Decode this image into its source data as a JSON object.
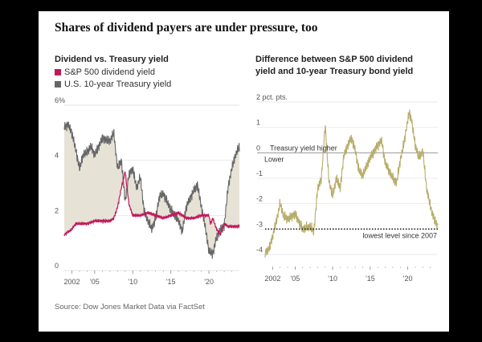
{
  "title": "Shares of dividend payers are under pressure, too",
  "source": "Source: Dow Jones Market Data via FactSet",
  "colors": {
    "dividend": "#c2185b",
    "treasury": "#666666",
    "fill": "#e6e3d6",
    "spread": "#b7ad6a"
  },
  "chart_data": [
    {
      "type": "line",
      "title": "Dividend vs. Treasury yield",
      "legend": [
        "S&P 500 dividend yield",
        "U.S. 10-year Treasury yield"
      ],
      "ylim": [
        0,
        6
      ],
      "yticks": [
        "0",
        "2",
        "4",
        "6%"
      ],
      "ytick_values": [
        0,
        2,
        4,
        6
      ],
      "xlim": [
        2001,
        2024
      ],
      "xticks": [
        "2002",
        "'05",
        "'10",
        "'15",
        "'20"
      ],
      "xtick_values": [
        2002,
        2005,
        2010,
        2015,
        2020
      ],
      "series": [
        {
          "name": "S&P 500 dividend yield",
          "x": [
            2001,
            2002,
            2002.5,
            2003,
            2004,
            2005,
            2006,
            2007,
            2007.5,
            2008,
            2008.5,
            2009,
            2009.2,
            2009.5,
            2010,
            2011,
            2012,
            2013,
            2014,
            2015,
            2016,
            2017,
            2018,
            2019,
            2020,
            2020.2,
            2020.5,
            2021,
            2021.5,
            2022,
            2022.5,
            2023,
            2024
          ],
          "y": [
            1.3,
            1.5,
            1.7,
            1.7,
            1.7,
            1.8,
            1.8,
            1.8,
            1.9,
            2.3,
            3.0,
            3.6,
            3.1,
            2.4,
            2.0,
            2.0,
            2.1,
            2.0,
            1.9,
            2.0,
            2.1,
            1.9,
            1.9,
            2.0,
            2.0,
            1.7,
            1.9,
            1.5,
            1.3,
            1.7,
            1.6,
            1.6,
            1.6
          ]
        },
        {
          "name": "U.S. 10-year Treasury yield",
          "x": [
            2001,
            2001.5,
            2002,
            2002.5,
            2003,
            2003.5,
            2004,
            2004.5,
            2005,
            2006,
            2007,
            2007.5,
            2008,
            2008.5,
            2009,
            2009.5,
            2010,
            2010.5,
            2011,
            2011.5,
            2012,
            2012.5,
            2013,
            2013.5,
            2014,
            2015,
            2016,
            2016.5,
            2017,
            2018,
            2018.5,
            2019,
            2019.5,
            2020,
            2020.5,
            2021,
            2021.5,
            2022,
            2022.5,
            2023,
            2023.5,
            2024
          ],
          "y": [
            5.2,
            5.3,
            5.0,
            4.4,
            3.7,
            4.2,
            4.3,
            4.5,
            4.2,
            4.8,
            4.7,
            5.0,
            3.7,
            4.0,
            2.5,
            3.5,
            3.7,
            3.0,
            3.4,
            2.1,
            1.8,
            1.5,
            1.9,
            2.7,
            2.8,
            2.2,
            1.8,
            1.4,
            2.3,
            2.9,
            3.1,
            2.3,
            1.6,
            0.7,
            0.6,
            1.2,
            1.5,
            1.6,
            3.0,
            3.7,
            4.2,
            4.5
          ]
        }
      ]
    },
    {
      "type": "line",
      "title": "Difference between S&P 500 dividend yield and 10-year Treasury bond yield",
      "ylim": [
        -4,
        2
      ],
      "yticks": [
        "2 pct. pts.",
        "1",
        "0",
        "-1",
        "-2",
        "-3",
        "-4"
      ],
      "ytick_values": [
        2,
        1,
        0,
        -1,
        -2,
        -3,
        -4
      ],
      "xlim": [
        2001,
        2024
      ],
      "xticks": [
        "2002",
        "'05",
        "'10",
        "'15",
        "'20"
      ],
      "xtick_values": [
        2002,
        2005,
        2010,
        2015,
        2020
      ],
      "annotations": {
        "zero_upper": "Treasury yield higher",
        "zero_lower": "Lower",
        "dotted": "lowest level since 2007"
      },
      "reference_lines": [
        0,
        -3.0
      ],
      "series": [
        {
          "name": "Difference",
          "x": [
            2001,
            2001.5,
            2002,
            2002.5,
            2003,
            2003.5,
            2004,
            2005,
            2006,
            2007,
            2007.5,
            2008,
            2008.5,
            2009,
            2009.5,
            2010,
            2010.5,
            2011,
            2011.5,
            2012,
            2012.5,
            2013,
            2013.5,
            2014,
            2015,
            2016,
            2016.5,
            2017,
            2018,
            2018.5,
            2019,
            2019.5,
            2020,
            2020.2,
            2020.5,
            2021,
            2021.5,
            2022,
            2022.5,
            2023,
            2023.5,
            2024
          ],
          "y": [
            -3.9,
            -3.8,
            -3.3,
            -2.7,
            -2.0,
            -2.5,
            -2.6,
            -2.4,
            -3.0,
            -2.9,
            -3.1,
            -1.4,
            -1.0,
            1.1,
            -1.1,
            -1.7,
            -1.0,
            -1.4,
            -0.1,
            0.3,
            0.6,
            0.1,
            -0.7,
            -0.9,
            -0.2,
            0.3,
            0.5,
            -0.4,
            -1.0,
            -1.2,
            -0.3,
            0.4,
            1.3,
            1.6,
            1.3,
            0.3,
            -0.2,
            0.1,
            -1.4,
            -2.1,
            -2.6,
            -2.9
          ]
        }
      ]
    }
  ]
}
